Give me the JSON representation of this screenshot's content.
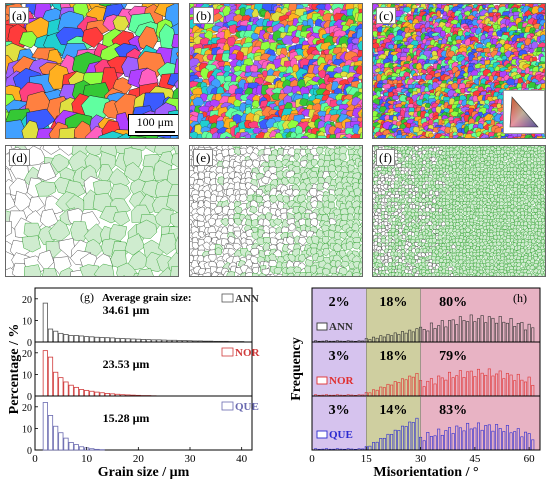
{
  "panels": {
    "a": {
      "label": "(a)",
      "scale_bar": "100 μm"
    },
    "b": {
      "label": "(b)"
    },
    "c": {
      "label": "(c)"
    },
    "d": {
      "label": "(d)"
    },
    "e": {
      "label": "(e)"
    },
    "f": {
      "label": "(f)"
    }
  },
  "chart_data": [
    {
      "type": "bar",
      "panel_label": "(g)",
      "xlabel": "Grain size / μm",
      "ylabel": "Percentage / %",
      "xlim": [
        0,
        42
      ],
      "xticks": [
        0,
        10,
        20,
        30,
        40
      ],
      "ylim": [
        0,
        25
      ],
      "yticks": [
        0,
        10,
        20
      ],
      "note_title": "Average grain size:",
      "series": [
        {
          "name": "ANN",
          "average": "34.61 μm",
          "color": "#555555",
          "x": [
            2,
            3,
            4,
            5,
            6,
            7,
            8,
            9,
            10,
            11,
            12,
            13,
            14,
            15,
            16,
            17,
            18,
            19,
            20,
            21,
            22,
            23,
            24,
            25,
            26,
            27,
            28,
            29,
            30,
            31,
            32,
            33,
            34,
            35,
            36,
            37,
            38,
            39,
            40
          ],
          "values": [
            18,
            6,
            5,
            4,
            3.5,
            3,
            3,
            2.8,
            2.5,
            2.4,
            2.2,
            2.1,
            2,
            1.9,
            1.7,
            1.6,
            1.5,
            1.4,
            1.3,
            1.2,
            1.1,
            1,
            1,
            0.9,
            0.8,
            0.8,
            0.7,
            0.7,
            0.6,
            0.5,
            0.5,
            0.4,
            0.4,
            0.3,
            0.3,
            0.3,
            0.2,
            0.2,
            0.2
          ]
        },
        {
          "name": "NOR",
          "average": "23.53 μm",
          "color": "#d03a3a",
          "x": [
            2,
            3,
            4,
            5,
            6,
            7,
            8,
            9,
            10,
            11,
            12,
            13,
            14,
            15,
            16,
            17,
            18,
            19,
            20,
            21,
            22,
            23
          ],
          "values": [
            21,
            18,
            11,
            8.5,
            6.5,
            5,
            4,
            3,
            2.6,
            2.2,
            1.8,
            1.5,
            1.2,
            1,
            0.8,
            0.6,
            0.5,
            0.4,
            0.3,
            0.2,
            0.2,
            0.1
          ]
        },
        {
          "name": "QUE",
          "average": "15.28 μm",
          "color": "#6a6ab0",
          "x": [
            2,
            3,
            4,
            5,
            6,
            7,
            8,
            9,
            10,
            11,
            12,
            13
          ],
          "values": [
            22,
            16,
            11,
            8,
            5.5,
            3.5,
            2.5,
            1.5,
            1,
            0.6,
            0.3,
            0.15
          ]
        }
      ]
    },
    {
      "type": "bar",
      "panel_label": "(h)",
      "xlabel": "Misorientation / °",
      "ylabel": "Frequency",
      "xlim": [
        0,
        63
      ],
      "xticks": [
        0,
        15,
        30,
        45,
        60
      ],
      "regions": [
        {
          "from": 0,
          "to": 15,
          "color": "#d6c3ee"
        },
        {
          "from": 15,
          "to": 30,
          "color": "#cfcfa0"
        },
        {
          "from": 30,
          "to": 63,
          "color": "#e8b3c4"
        }
      ],
      "series": [
        {
          "name": "ANN",
          "color": "#333333",
          "percentages": [
            "2%",
            "18%",
            "80%"
          ]
        },
        {
          "name": "NOR",
          "color": "#e03030",
          "percentages": [
            "3%",
            "18%",
            "79%"
          ]
        },
        {
          "name": "QUE",
          "color": "#2a2ad0",
          "percentages": [
            "3%",
            "14%",
            "83%"
          ]
        }
      ]
    }
  ]
}
